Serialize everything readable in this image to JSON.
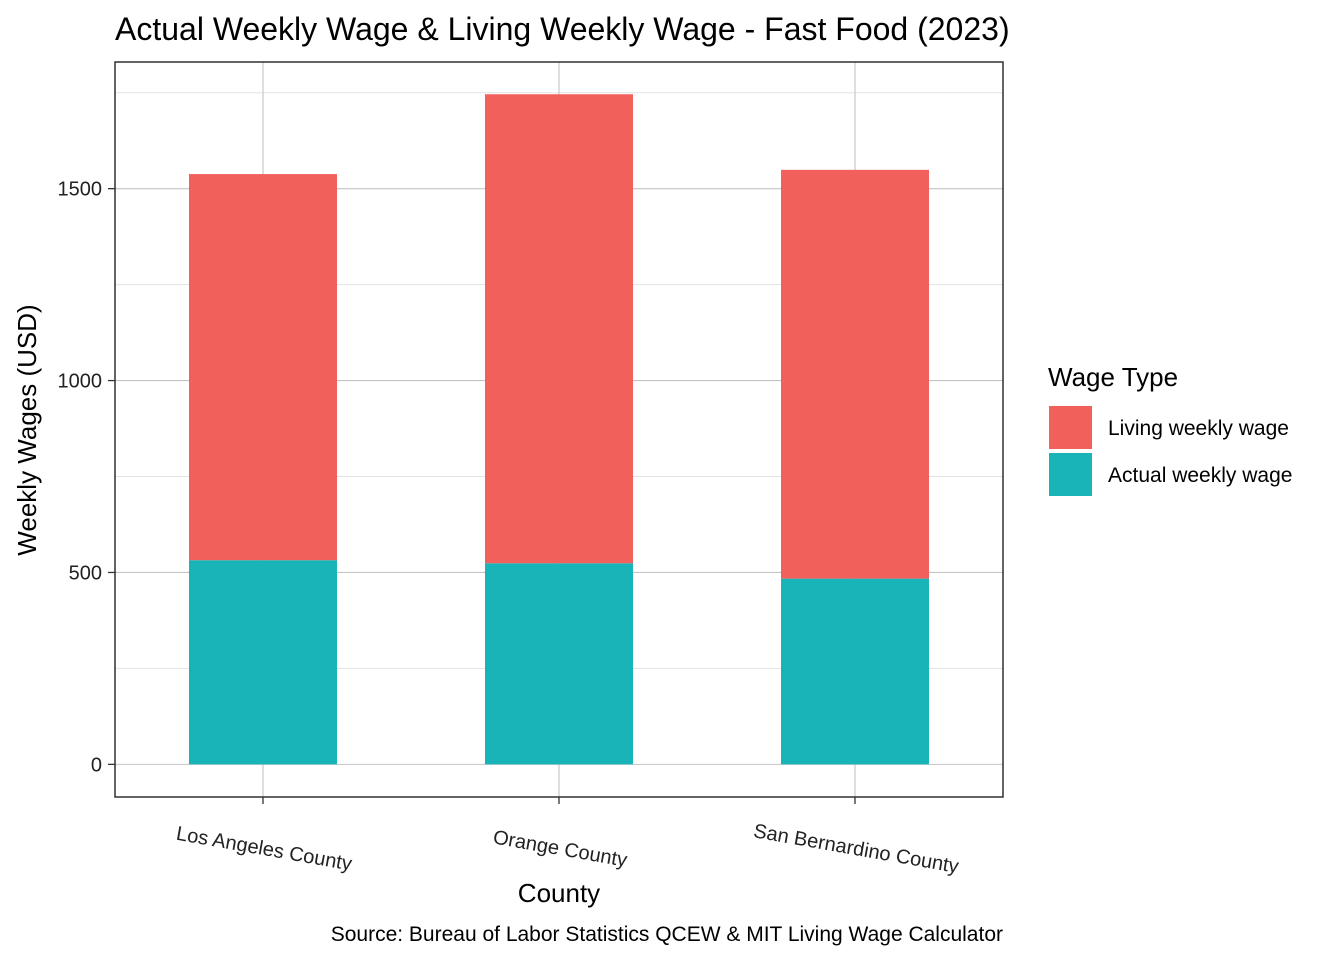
{
  "chart_data": {
    "type": "bar",
    "stacked": true,
    "title": "Actual Weekly Wage & Living Weekly Wage - Fast Food (2023)",
    "xlabel": "County",
    "ylabel": "Weekly Wages (USD)",
    "caption": "Source: Bureau of Labor Statistics QCEW & MIT Living Wage Calculator",
    "categories": [
      "Los Angeles County",
      "Orange County",
      "San Bernardino County"
    ],
    "ylim": [
      -85,
      1830
    ],
    "yticks": [
      0,
      500,
      1000,
      1500
    ],
    "ytick_labels": [
      "0",
      "500",
      "1000",
      "1500"
    ],
    "grid": true,
    "legend": {
      "title": "Wage Type",
      "position": "right",
      "entries": [
        "Living weekly wage",
        "Actual weekly wage"
      ]
    },
    "series": [
      {
        "name": "Actual weekly wage",
        "color": "#19B4B8",
        "values": [
          532,
          524,
          484
        ]
      },
      {
        "name": "Living weekly wage",
        "color": "#F2605C",
        "values": [
          1006,
          1222,
          1065
        ]
      }
    ]
  }
}
